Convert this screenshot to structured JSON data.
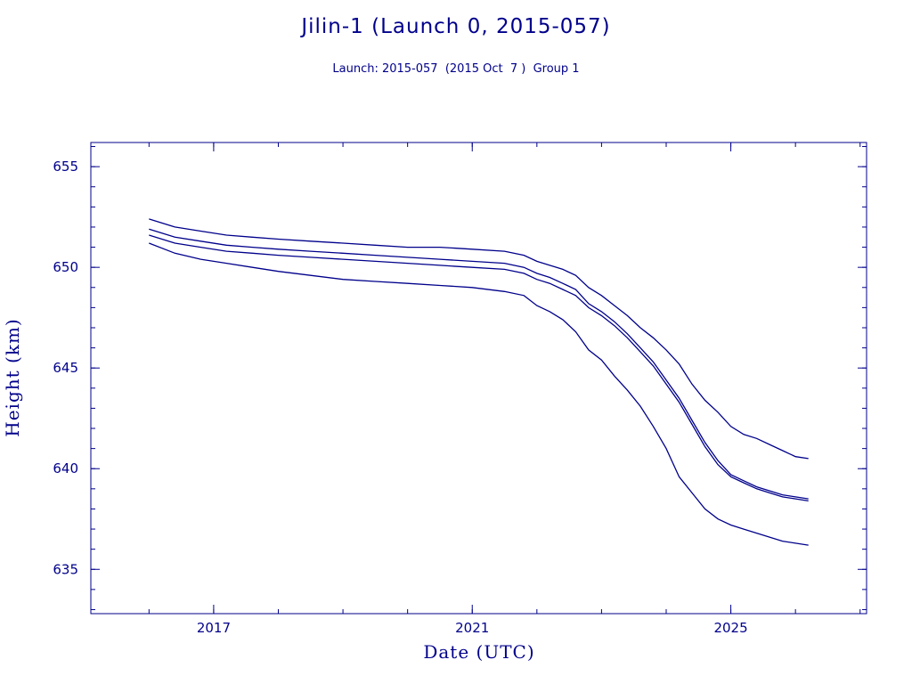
{
  "chart_data": {
    "type": "line",
    "title": "Jilin-1 (Launch 0, 2015-057)",
    "subtitle": "Launch: 2015-057  (2015 Oct  7 )  Group 1",
    "xlabel": "Date (UTC)",
    "ylabel": "Height (km)",
    "xlim": [
      2015.1,
      2027.1
    ],
    "ylim": [
      632.8,
      656.2
    ],
    "x_ticks": [
      2017,
      2021,
      2025
    ],
    "x_tick_labels": [
      "2017",
      "2021",
      "2025"
    ],
    "y_ticks": [
      635,
      640,
      645,
      650,
      655
    ],
    "y_tick_labels": [
      "635",
      "640",
      "645",
      "650",
      "655"
    ],
    "x_minor_step": 1,
    "y_minor_step": 1,
    "grid": false,
    "legend": "none",
    "color": "#00008b",
    "series": [
      {
        "x": [
          2016.0,
          2016.4,
          2016.8,
          2017.2,
          2017.6,
          2018.0,
          2018.5,
          2019.0,
          2019.5,
          2020.0,
          2020.5,
          2021.0,
          2021.5,
          2021.8,
          2022.0,
          2022.2,
          2022.4,
          2022.6,
          2022.8,
          2023.0,
          2023.2,
          2023.4,
          2023.6,
          2023.8,
          2024.0,
          2024.2,
          2024.4,
          2024.6,
          2024.8,
          2025.0,
          2025.2,
          2025.4,
          2025.6,
          2025.8,
          2026.0,
          2026.2
        ],
        "y": [
          652.4,
          652.0,
          651.8,
          651.6,
          651.5,
          651.4,
          651.3,
          651.2,
          651.1,
          651.0,
          651.0,
          650.9,
          650.8,
          650.6,
          650.3,
          650.1,
          649.9,
          649.6,
          649.0,
          648.6,
          648.1,
          647.6,
          647.0,
          646.5,
          645.9,
          645.2,
          644.2,
          643.4,
          642.8,
          642.1,
          641.7,
          641.5,
          641.2,
          640.9,
          640.6,
          640.5
        ]
      },
      {
        "x": [
          2016.0,
          2016.4,
          2016.8,
          2017.2,
          2017.6,
          2018.0,
          2018.5,
          2019.0,
          2019.5,
          2020.0,
          2020.5,
          2021.0,
          2021.5,
          2021.8,
          2022.0,
          2022.2,
          2022.4,
          2022.6,
          2022.8,
          2023.0,
          2023.2,
          2023.4,
          2023.6,
          2023.8,
          2024.0,
          2024.2,
          2024.4,
          2024.6,
          2024.8,
          2025.0,
          2025.2,
          2025.4,
          2025.6,
          2025.8,
          2026.0,
          2026.2
        ],
        "y": [
          651.9,
          651.5,
          651.3,
          651.1,
          651.0,
          650.9,
          650.8,
          650.7,
          650.6,
          650.5,
          650.4,
          650.3,
          650.2,
          650.0,
          649.7,
          649.5,
          649.2,
          648.9,
          648.2,
          647.8,
          647.3,
          646.7,
          646.0,
          645.3,
          644.4,
          643.5,
          642.4,
          641.3,
          640.4,
          639.7,
          639.4,
          639.1,
          638.9,
          638.7,
          638.6,
          638.5
        ]
      },
      {
        "x": [
          2016.0,
          2016.4,
          2016.8,
          2017.2,
          2017.6,
          2018.0,
          2018.5,
          2019.0,
          2019.5,
          2020.0,
          2020.5,
          2021.0,
          2021.5,
          2021.8,
          2022.0,
          2022.2,
          2022.4,
          2022.6,
          2022.8,
          2023.0,
          2023.2,
          2023.4,
          2023.6,
          2023.8,
          2024.0,
          2024.2,
          2024.4,
          2024.6,
          2024.8,
          2025.0,
          2025.2,
          2025.4,
          2025.6,
          2025.8,
          2026.0,
          2026.2
        ],
        "y": [
          651.6,
          651.2,
          651.0,
          650.8,
          650.7,
          650.6,
          650.5,
          650.4,
          650.3,
          650.2,
          650.1,
          650.0,
          649.9,
          649.7,
          649.4,
          649.2,
          648.9,
          648.6,
          648.0,
          647.6,
          647.1,
          646.5,
          645.8,
          645.1,
          644.2,
          643.3,
          642.2,
          641.1,
          640.2,
          639.6,
          639.3,
          639.0,
          638.8,
          638.6,
          638.5,
          638.4
        ]
      },
      {
        "x": [
          2016.0,
          2016.4,
          2016.8,
          2017.2,
          2017.6,
          2018.0,
          2018.5,
          2019.0,
          2019.5,
          2020.0,
          2020.5,
          2021.0,
          2021.5,
          2021.8,
          2022.0,
          2022.2,
          2022.4,
          2022.6,
          2022.8,
          2023.0,
          2023.2,
          2023.4,
          2023.6,
          2023.8,
          2024.0,
          2024.2,
          2024.4,
          2024.6,
          2024.8,
          2025.0,
          2025.2,
          2025.4,
          2025.6,
          2025.8,
          2026.0,
          2026.2
        ],
        "y": [
          651.2,
          650.7,
          650.4,
          650.2,
          650.0,
          649.8,
          649.6,
          649.4,
          649.3,
          649.2,
          649.1,
          649.0,
          648.8,
          648.6,
          648.1,
          647.8,
          647.4,
          646.8,
          645.9,
          645.4,
          644.6,
          643.9,
          643.1,
          642.1,
          641.0,
          639.6,
          638.8,
          638.0,
          637.5,
          637.2,
          637.0,
          636.8,
          636.6,
          636.4,
          636.3,
          636.2
        ]
      }
    ]
  }
}
